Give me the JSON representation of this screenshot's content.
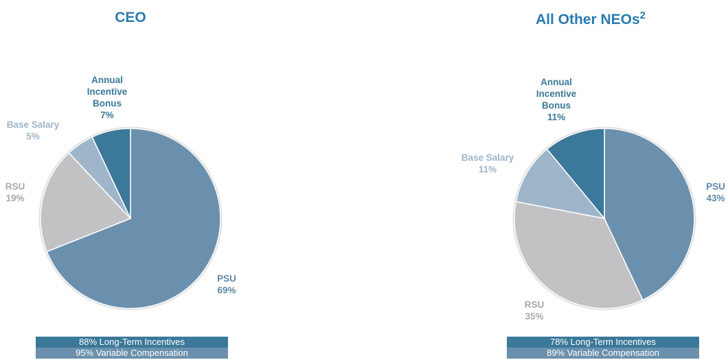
{
  "chart_data": [
    {
      "type": "pie",
      "title": "CEO",
      "categories": [
        "PSU",
        "RSU",
        "Base Salary",
        "Annual Incentive Bonus"
      ],
      "values": [
        69,
        19,
        5,
        7
      ],
      "value_labels": [
        "69%",
        "19%",
        "5%",
        "7%"
      ],
      "colors": [
        "#6b90ad",
        "#c2c2c4",
        "#9fb5ca",
        "#3b7899"
      ],
      "notes": [
        "88% Long-Term Incentives",
        "95% Variable Compensation"
      ]
    },
    {
      "type": "pie",
      "title": "All Other NEOs",
      "title_superscript": "2",
      "categories": [
        "PSU",
        "RSU",
        "Base Salary",
        "Annual Incentive Bonus"
      ],
      "values": [
        43,
        35,
        11,
        11
      ],
      "value_labels": [
        "43%",
        "35%",
        "11%",
        "11%"
      ],
      "colors": [
        "#6b90ad",
        "#c2c2c4",
        "#9fb5ca",
        "#3b7899"
      ],
      "notes": [
        "78% Long-Term Incentives",
        "89% Variable Compensation"
      ]
    }
  ]
}
